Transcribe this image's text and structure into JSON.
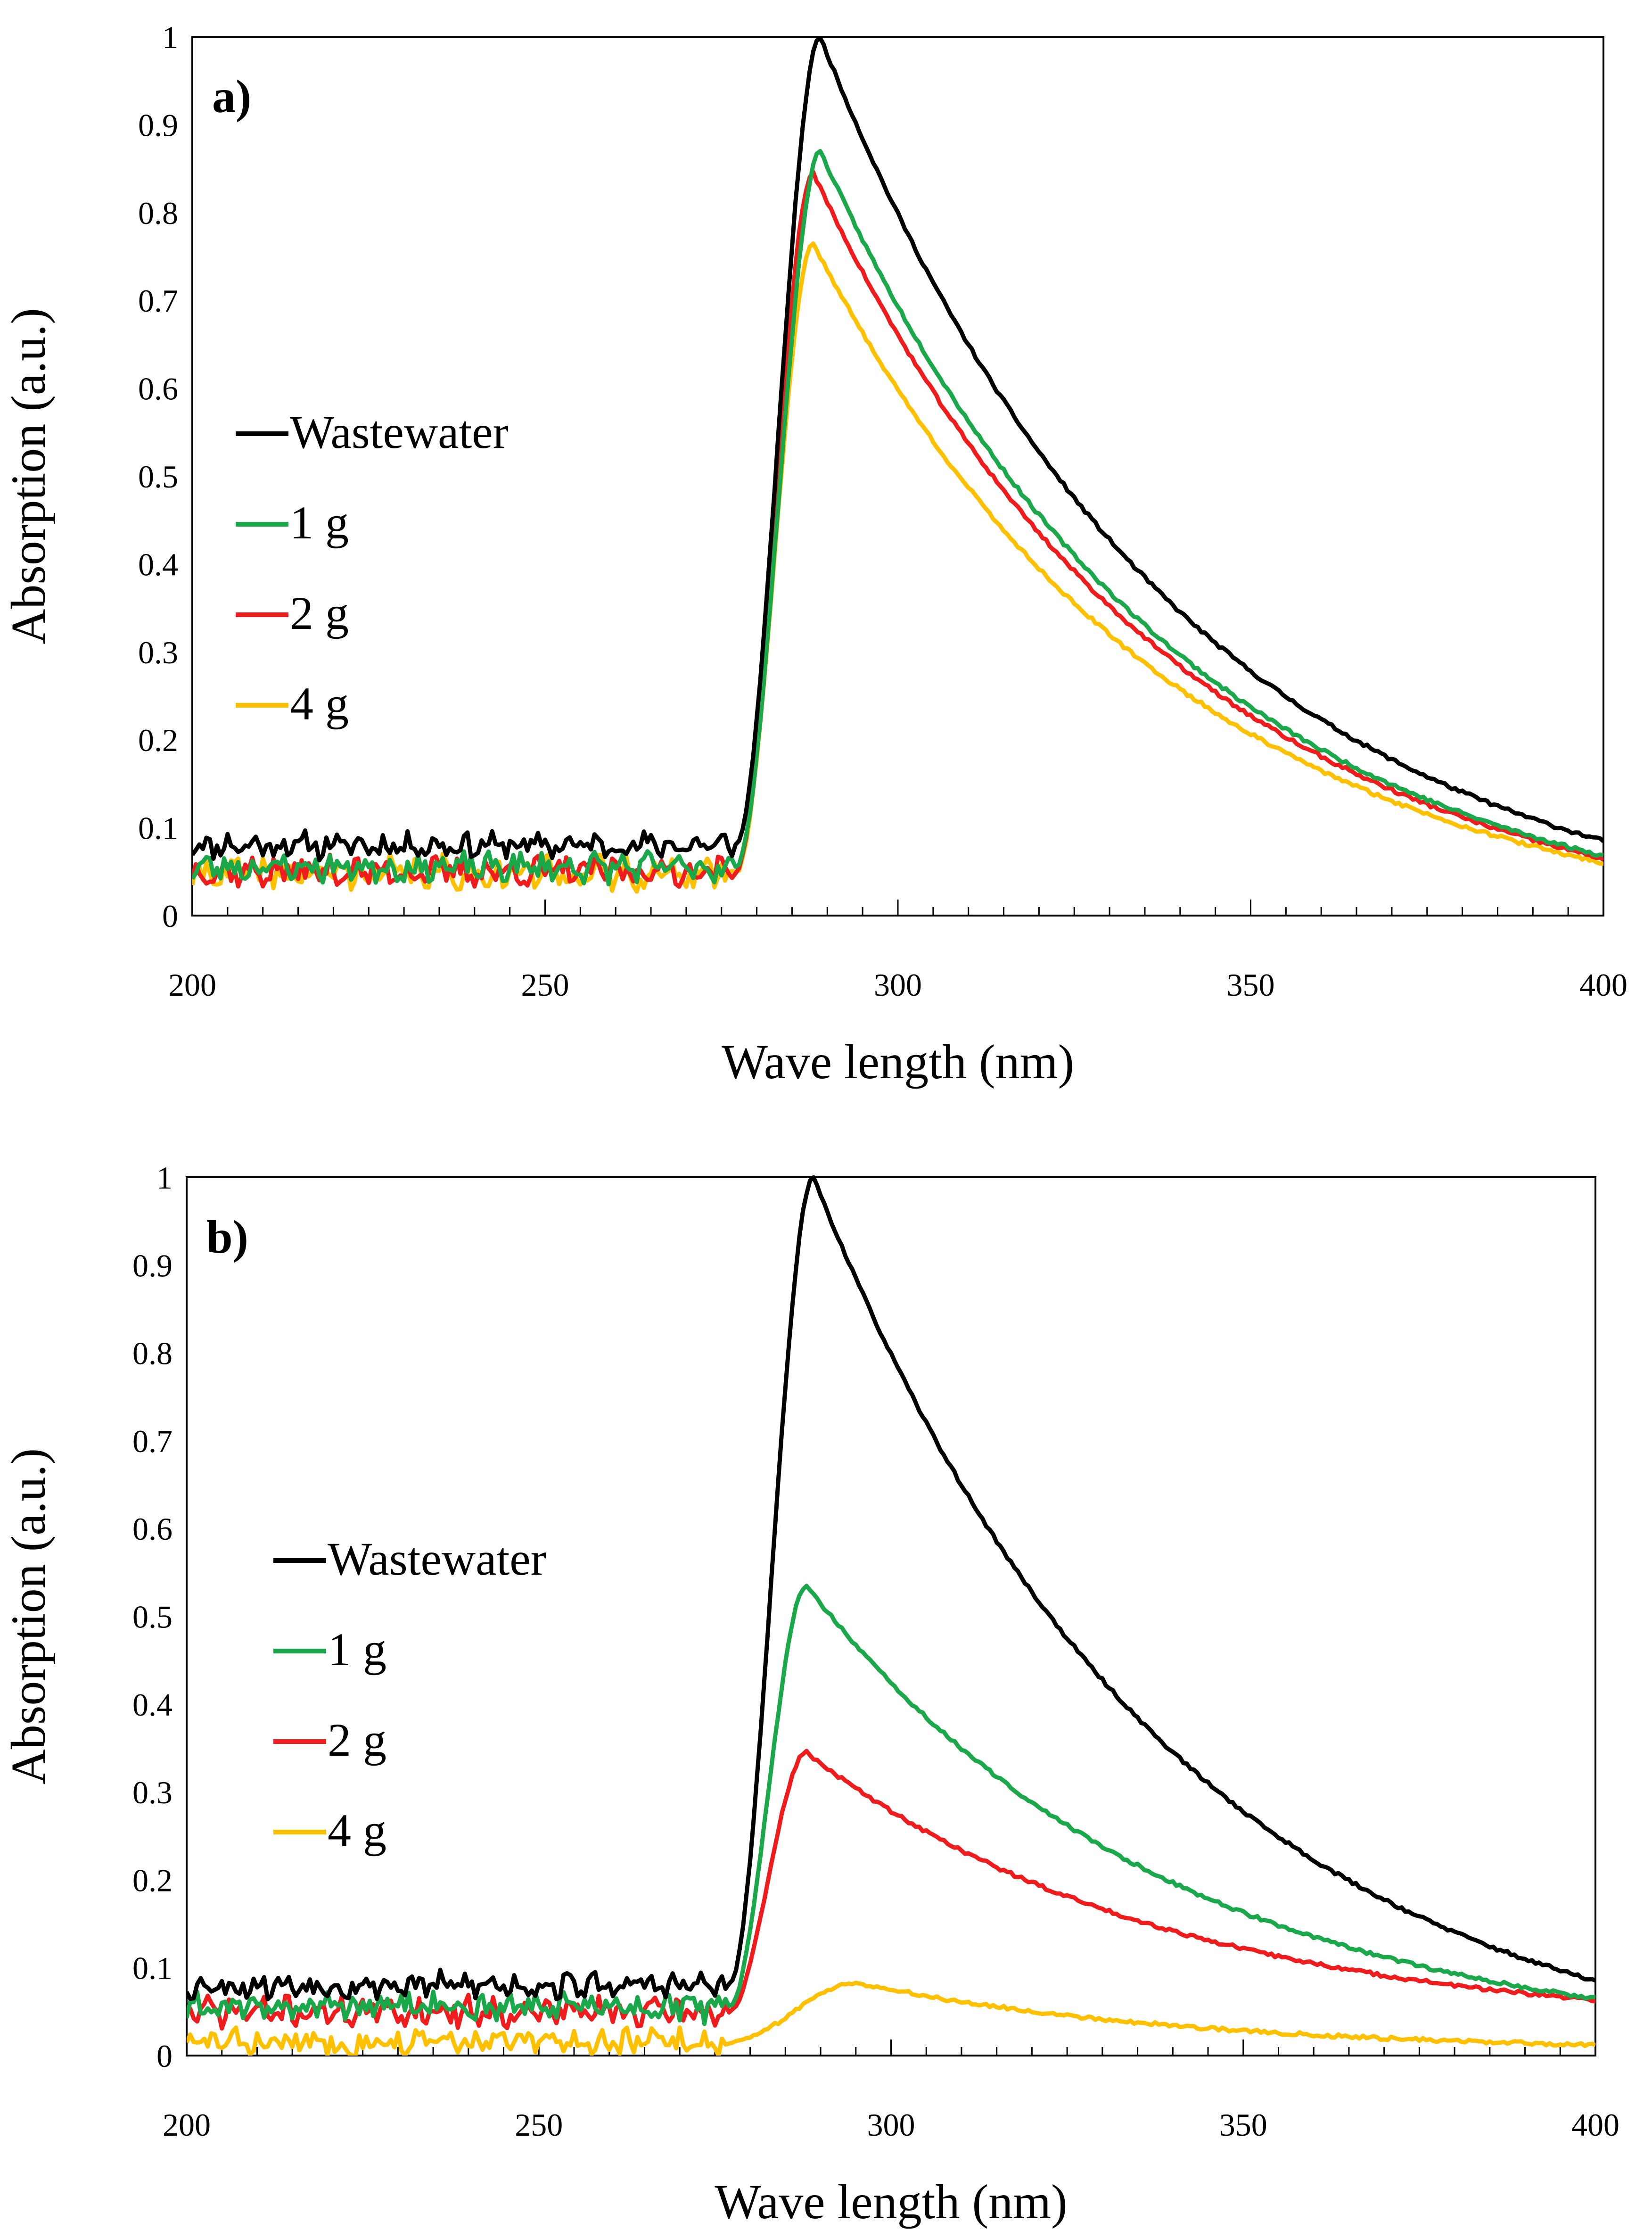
{
  "chart_data": [
    {
      "type": "line",
      "panel_label": "a)",
      "xlabel": "Wave length (nm)",
      "ylabel": "Absorption (a.u.)",
      "xlim": [
        200,
        400
      ],
      "ylim": [
        0,
        1
      ],
      "x_ticks": [
        "200",
        "250",
        "300",
        "350",
        "400"
      ],
      "y_ticks": [
        "0",
        "0.1",
        "0.2",
        "0.3",
        "0.4",
        "0.5",
        "0.6",
        "0.7",
        "0.8",
        "0.9",
        "1"
      ],
      "grid": false,
      "legend_position": "left-middle",
      "series": [
        {
          "name": "Wastewater",
          "color": "#000000",
          "baseline": 0.08,
          "noise": 0.012,
          "peak_x": 289,
          "peak_y": 1.0,
          "end_y": 0.085,
          "shoulder": 0.26,
          "seed": 11
        },
        {
          "name": "1 g",
          "color": "#1aa84a",
          "baseline": 0.055,
          "noise": 0.013,
          "peak_x": 289,
          "peak_y": 0.87,
          "end_y": 0.068,
          "shoulder": 0.22,
          "seed": 23
        },
        {
          "name": "2 g",
          "color": "#ee1c1c",
          "baseline": 0.05,
          "noise": 0.013,
          "peak_x": 288,
          "peak_y": 0.845,
          "end_y": 0.065,
          "shoulder": 0.21,
          "seed": 37
        },
        {
          "name": "4 g",
          "color": "#ffc000",
          "baseline": 0.048,
          "noise": 0.015,
          "peak_x": 288,
          "peak_y": 0.765,
          "end_y": 0.06,
          "shoulder": 0.2,
          "seed": 41
        }
      ]
    },
    {
      "type": "line",
      "panel_label": "b)",
      "xlabel": "Wave length (nm)",
      "ylabel": "Absorption (a.u.)",
      "xlim": [
        200,
        400
      ],
      "ylim": [
        0,
        1
      ],
      "x_ticks": [
        "200",
        "250",
        "300",
        "350",
        "400"
      ],
      "y_ticks": [
        "0",
        "0.1",
        "0.2",
        "0.3",
        "0.4",
        "0.5",
        "0.6",
        "0.7",
        "0.8",
        "0.9",
        "1"
      ],
      "grid": false,
      "legend_position": "left-middle",
      "series": [
        {
          "name": "Wastewater",
          "color": "#000000",
          "baseline": 0.08,
          "noise": 0.012,
          "peak_x": 289,
          "peak_y": 1.0,
          "end_y": 0.085,
          "shoulder": 0.26,
          "seed": 53
        },
        {
          "name": "1 g",
          "color": "#1aa84a",
          "baseline": 0.055,
          "noise": 0.013,
          "peak_x": 288,
          "peak_y": 0.535,
          "end_y": 0.065,
          "shoulder": 0.16,
          "seed": 61
        },
        {
          "name": "2 g",
          "color": "#ee1c1c",
          "baseline": 0.05,
          "noise": 0.013,
          "peak_x": 288,
          "peak_y": 0.345,
          "end_y": 0.063,
          "shoulder": 0.12,
          "seed": 71
        },
        {
          "name": "4 g",
          "color": "#ffc000",
          "baseline": 0.015,
          "noise": 0.012,
          "peak_x": 295,
          "peak_y": 0.083,
          "end_y": 0.012,
          "shoulder": 0.03,
          "seed": 83
        }
      ]
    }
  ]
}
